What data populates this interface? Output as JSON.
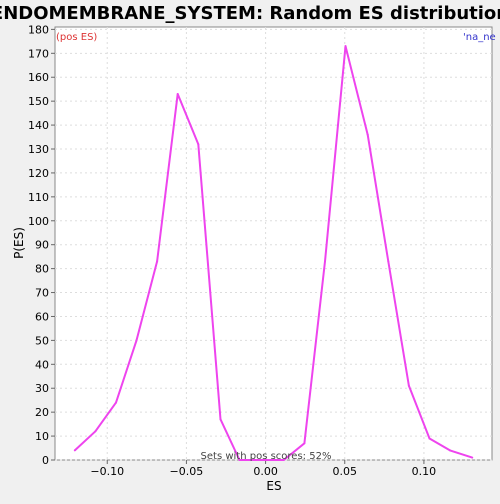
{
  "chart_data": {
    "type": "line",
    "title": "ENDOMEMBRANE_SYSTEM: Random ES distribution",
    "xlabel": "ES",
    "ylabel": "P(ES)",
    "xlim": [
      -0.133,
      0.143
    ],
    "ylim": [
      0,
      181
    ],
    "x_ticks": [
      -0.1,
      -0.05,
      0.0,
      0.05,
      0.1
    ],
    "x_tick_labels": [
      "−0.10",
      "−0.05",
      "0.00",
      "0.05",
      "0.10"
    ],
    "y_ticks": [
      0,
      10,
      20,
      30,
      40,
      50,
      60,
      70,
      80,
      90,
      100,
      110,
      120,
      130,
      140,
      150,
      160,
      170,
      180
    ],
    "grid": true,
    "series": [
      {
        "color": "#ee44ee",
        "x": [
          -0.1205,
          -0.1075,
          -0.0945,
          -0.0815,
          -0.0685,
          -0.0555,
          -0.0425,
          -0.0285,
          -0.0165,
          0.0115,
          0.0245,
          0.0375,
          0.0505,
          0.0645,
          0.0775,
          0.0905,
          0.1035,
          0.1165,
          0.1305
        ],
        "y": [
          4,
          12,
          24,
          50,
          83,
          153,
          132,
          17,
          0,
          0,
          7,
          83,
          173,
          136,
          83,
          31,
          9,
          4,
          1
        ]
      }
    ],
    "annotations": {
      "left_corner": "(pos ES)",
      "right_corner": "'na_ne",
      "footer": "Sets with pos scores: 52%"
    }
  },
  "colors": {
    "left_corner": "#dd3333",
    "right_corner": "#3333cc",
    "footer": "#444444"
  }
}
